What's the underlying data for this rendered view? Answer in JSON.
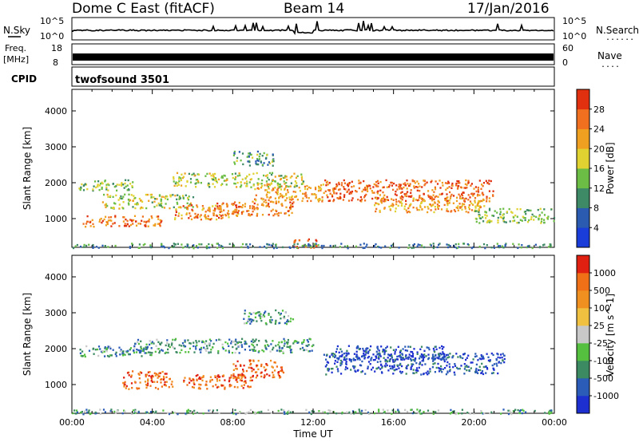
{
  "header": {
    "title": "Dome C East (fitACF)",
    "beam": "Beam 14",
    "date": "17/Jan/2016"
  },
  "strip_labels": {
    "nsky": "N.Sky",
    "nsky_tick_top": "10^5",
    "nsky_tick_bot": "10^0",
    "nsearch": "N.Search",
    "nsearch_tick_top": "10^5",
    "nsearch_tick_bot": "10^0",
    "freq": "Freq.",
    "freq_unit": "[MHz]",
    "freq_tick_top": "18",
    "freq_tick_bot": "8",
    "nave": "Nave",
    "nave_tick_top": "60",
    "nave_tick_bot": "0",
    "cpid": "CPID",
    "cpid_value": "twofsound 3501",
    "dots": "......",
    "dots_short": "...."
  },
  "chart_data": [
    {
      "type": "heatmap",
      "name": "Power panel",
      "ylabel": "Slant Range [km]",
      "ylim": [
        200,
        4600
      ],
      "yticks": [
        "1000",
        "2000",
        "3000",
        "4000"
      ],
      "xlim": [
        0,
        24
      ],
      "colorbar": {
        "label": "Power [dB]",
        "ticks": [
          "4",
          "8",
          "12",
          "16",
          "20",
          "24",
          "28"
        ],
        "colors": [
          "#1a3cd8",
          "#2a5bb0",
          "#3e8a66",
          "#6bbd45",
          "#e0d230",
          "#f0a020",
          "#f07020",
          "#e03010"
        ]
      },
      "bands": [
        {
          "t0": 0.2,
          "t1": 3.0,
          "r0": 1800,
          "r1": 2100,
          "level": 0.45
        },
        {
          "t0": 1.5,
          "t1": 6.0,
          "r0": 1300,
          "r1": 1700,
          "level": 0.5
        },
        {
          "t0": 0.5,
          "t1": 4.5,
          "r0": 800,
          "r1": 1100,
          "level": 0.8
        },
        {
          "t0": 5.0,
          "t1": 8.5,
          "r0": 1000,
          "r1": 1400,
          "level": 0.75
        },
        {
          "t0": 7.0,
          "t1": 11.0,
          "r0": 1100,
          "r1": 1500,
          "level": 0.8
        },
        {
          "t0": 9.0,
          "t1": 12.5,
          "r0": 1500,
          "r1": 2000,
          "level": 0.7
        },
        {
          "t0": 11.0,
          "t1": 12.2,
          "r0": 200,
          "r1": 450,
          "level": 0.95
        },
        {
          "t0": 12.5,
          "t1": 21.0,
          "r0": 1500,
          "r1": 2100,
          "level": 0.85
        },
        {
          "t0": 15.0,
          "t1": 20.5,
          "r0": 1200,
          "r1": 1600,
          "level": 0.7
        },
        {
          "t0": 5.0,
          "t1": 11.5,
          "r0": 1900,
          "r1": 2300,
          "level": 0.5
        },
        {
          "t0": 8.0,
          "t1": 10.0,
          "r0": 2500,
          "r1": 2900,
          "level": 0.35
        },
        {
          "t0": 0.0,
          "t1": 24.0,
          "r0": 200,
          "r1": 330,
          "level": 0.3
        },
        {
          "t0": 20.0,
          "t1": 24.0,
          "r0": 900,
          "r1": 1300,
          "level": 0.45
        }
      ]
    },
    {
      "type": "heatmap",
      "name": "Velocity panel",
      "ylabel": "Slant Range [km]",
      "xlabel": "Time UT",
      "ylim": [
        200,
        4600
      ],
      "yticks": [
        "1000",
        "2000",
        "3000",
        "4000"
      ],
      "xlim": [
        0,
        24
      ],
      "xticks": [
        "00:00",
        "04:00",
        "08:00",
        "12:00",
        "16:00",
        "20:00",
        "00:00"
      ],
      "colorbar": {
        "label": "Velocity [m s^-1]",
        "ticks": [
          "1000",
          "500",
          "100",
          "25",
          "-25",
          "-100",
          "-500",
          "-1000"
        ],
        "colors": [
          "#1e2fd0",
          "#2a5cb8",
          "#3c8a62",
          "#55c040",
          "#c8c8c8",
          "#f0c040",
          "#f09020",
          "#f07018",
          "#e02010"
        ]
      },
      "bands": [
        {
          "t0": 0.3,
          "t1": 4.0,
          "r0": 1800,
          "r1": 2100,
          "level": 0.3
        },
        {
          "t0": 2.5,
          "t1": 5.0,
          "r0": 900,
          "r1": 1400,
          "level": 0.85
        },
        {
          "t0": 5.5,
          "t1": 9.0,
          "r0": 900,
          "r1": 1300,
          "level": 0.85
        },
        {
          "t0": 8.0,
          "t1": 10.5,
          "r0": 1200,
          "r1": 1700,
          "level": 0.85
        },
        {
          "t0": 3.0,
          "t1": 12.0,
          "r0": 1900,
          "r1": 2300,
          "level": 0.3
        },
        {
          "t0": 12.5,
          "t1": 21.5,
          "r0": 1300,
          "r1": 1900,
          "level": 0.12
        },
        {
          "t0": 13.0,
          "t1": 18.5,
          "r0": 1700,
          "r1": 2100,
          "level": 0.1
        },
        {
          "t0": 0.0,
          "t1": 24.0,
          "r0": 200,
          "r1": 330,
          "level": 0.35
        },
        {
          "t0": 8.5,
          "t1": 11.0,
          "r0": 2700,
          "r1": 3100,
          "level": 0.3
        }
      ]
    }
  ]
}
